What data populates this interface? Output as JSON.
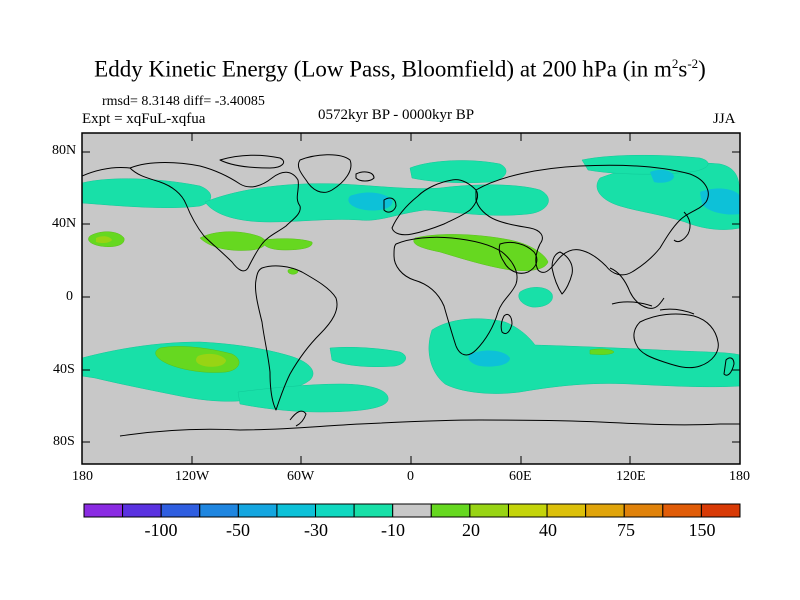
{
  "title": "Eddy Kinetic Energy (Low Pass, Bloomfield) at 200 hPa (in m",
  "title_sup1": "2",
  "title_mid": "s",
  "title_sup2": "-2",
  "title_end": ")",
  "stats": "rmsd= 8.3148 diff= -3.40085",
  "expt": "Expt = xqFuL-xqfua",
  "period": "0572kyr BP - 0000kyr BP",
  "season": "JJA",
  "lat_labels": [
    "80N",
    "40N",
    "0",
    "40S",
    "80S"
  ],
  "lon_labels": [
    "180",
    "120W",
    "60W",
    "0",
    "60E",
    "120E",
    "180"
  ],
  "colorbar": {
    "labels": [
      "-100",
      "-50",
      "-30",
      "-10",
      "20",
      "40",
      "75",
      "150"
    ],
    "colors": [
      "#8a2be2",
      "#5a32e0",
      "#2f5ee0",
      "#1f86e0",
      "#14a6e0",
      "#0dc1d8",
      "#10d8c0",
      "#18e0a8",
      "#c8c8c8",
      "#66d820",
      "#98d414",
      "#c4d40a",
      "#dcc00a",
      "#e0a40a",
      "#e0820a",
      "#e05c08",
      "#d83a06"
    ]
  }
}
